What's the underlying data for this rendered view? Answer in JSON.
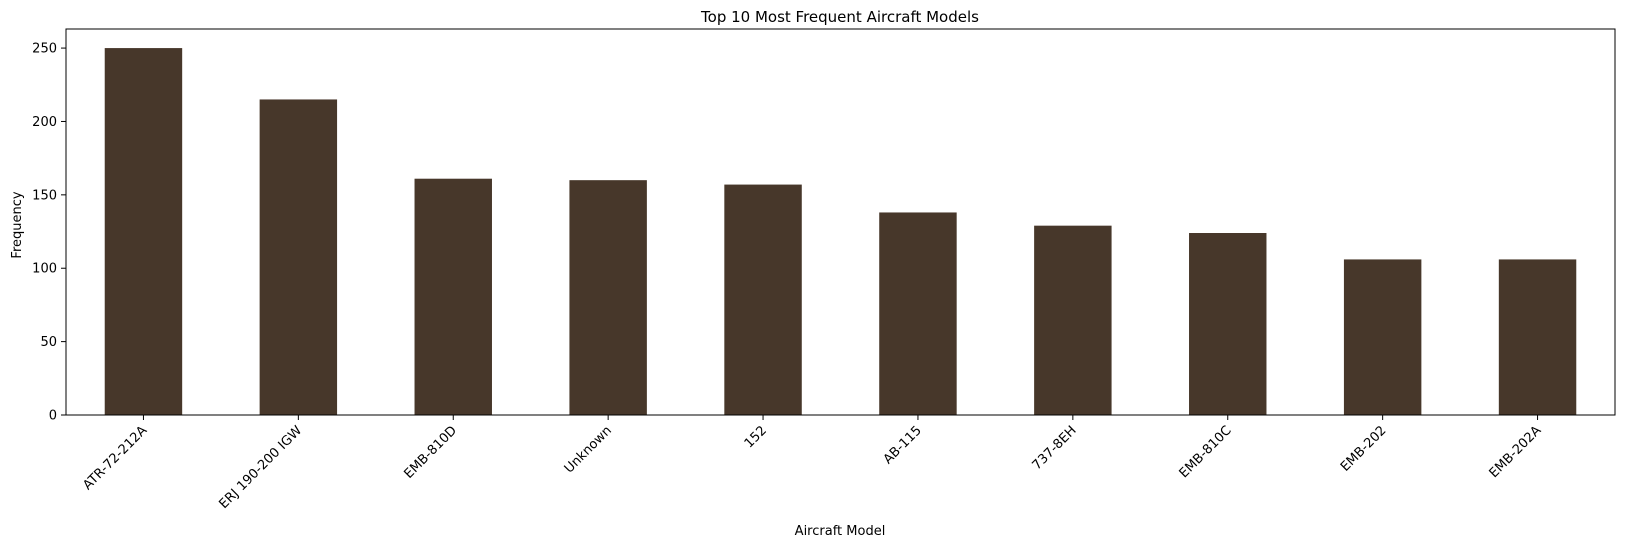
{
  "chart_data": {
    "type": "bar",
    "title": "Top 10 Most Frequent Aircraft Models",
    "xlabel": "Aircraft Model",
    "ylabel": "Frequency",
    "categories": [
      "ATR-72-212A",
      "ERJ 190-200 IGW",
      "EMB-810D",
      "Unknown",
      "152",
      "AB-115",
      "737-8EH",
      "EMB-810C",
      "EMB-202",
      "EMB-202A"
    ],
    "values": [
      250,
      215,
      161,
      160,
      157,
      138,
      129,
      124,
      106,
      106
    ],
    "ylim": [
      0,
      263
    ],
    "yticks": [
      0,
      50,
      100,
      150,
      200,
      250
    ],
    "grid": false,
    "legend": "none",
    "bar_color": "#47372a"
  }
}
